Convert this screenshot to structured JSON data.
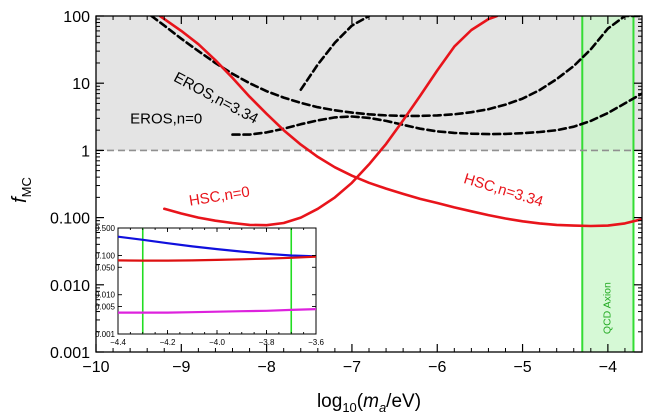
{
  "chart_data": [
    {
      "type": "line",
      "xlabel": "log10(ma/eV)",
      "ylabel": "fMC",
      "xlabel_parts": {
        "pre": "log",
        "sub": "10",
        "open": "(",
        "var": "m",
        "var_sub": "a",
        "post": "/eV)"
      },
      "ylabel_parts": {
        "var": "f",
        "sub": "MC"
      },
      "xlim": [
        -10,
        -3.6
      ],
      "ylim": [
        0.001,
        100
      ],
      "yscale": "log",
      "x_ticks": [
        -10,
        -9,
        -8,
        -7,
        -6,
        -5,
        -4
      ],
      "x_tick_labels": [
        "−10",
        "−9",
        "−8",
        "−7",
        "−6",
        "−5",
        "−4"
      ],
      "y_ticks": [
        0.001,
        0.01,
        0.1,
        1,
        10,
        100
      ],
      "y_tick_labels": [
        "0.001",
        "0.010",
        "0.100",
        "1",
        "10",
        "100"
      ],
      "excluded_region": {
        "ymin": 1,
        "ymax": 100,
        "color": "#e4e4e4"
      },
      "reference_line": {
        "y": 1,
        "color": "#909090",
        "style": "dashed"
      },
      "band": {
        "x": [
          -4.3,
          -3.7
        ],
        "label": "QCD Axion",
        "fill": "#c8f7c8",
        "edge": "#33dd33",
        "text_color": "#22aa22"
      },
      "series": [
        {
          "name": "EROS,n=3.34",
          "color": "#000000",
          "style": "dashed",
          "x": [
            -9.35,
            -9.2,
            -9.0,
            -8.8,
            -8.6,
            -8.4,
            -8.2,
            -8.0,
            -7.8,
            -7.6,
            -7.4,
            -7.2,
            -7.0,
            -6.8,
            -6.6,
            -6.4,
            -6.2,
            -6.0,
            -5.8,
            -5.6,
            -5.4,
            -5.2,
            -5.0,
            -4.8,
            -4.6,
            -4.4,
            -4.2,
            -4.0,
            -3.8,
            -3.6
          ],
          "y": [
            100,
            72,
            46,
            30,
            20,
            13.8,
            10,
            7.6,
            6.1,
            5.1,
            4.4,
            3.95,
            3.65,
            3.45,
            3.32,
            3.26,
            3.26,
            3.32,
            3.45,
            3.7,
            4.1,
            4.8,
            5.9,
            7.9,
            11.5,
            18,
            32,
            65,
            100,
            100
          ]
        },
        {
          "name": "EROS,n=0",
          "color": "#000000",
          "style": "dashed",
          "x": [
            -8.4,
            -8.2,
            -8.0,
            -7.8,
            -7.6,
            -7.4,
            -7.2,
            -7.0,
            -6.8,
            -6.6,
            -6.4,
            -6.2,
            -6.0,
            -5.8,
            -5.6,
            -5.4,
            -5.2,
            -5.0,
            -4.8,
            -4.6,
            -4.4,
            -4.2,
            -4.0,
            -3.8,
            -3.6
          ],
          "y": [
            1.72,
            1.72,
            1.85,
            2.1,
            2.45,
            2.8,
            3.1,
            3.2,
            3.05,
            2.75,
            2.4,
            2.1,
            1.92,
            1.82,
            1.77,
            1.75,
            1.76,
            1.8,
            1.88,
            2.0,
            2.25,
            2.75,
            3.6,
            5.0,
            7.0
          ]
        },
        {
          "name": "EROS,n=0 (upper branch)",
          "color": "#000000",
          "style": "dashed",
          "x": [
            -7.6,
            -7.4,
            -7.2,
            -7.0,
            -6.8
          ],
          "y": [
            8.0,
            19,
            40,
            72,
            100
          ]
        },
        {
          "name": "HSC,n=0",
          "color": "#e8141b",
          "style": "solid",
          "x": [
            -9.2,
            -9.0,
            -8.8,
            -8.6,
            -8.4,
            -8.2,
            -8.0,
            -7.8,
            -7.6,
            -7.4,
            -7.2,
            -7.0,
            -6.8,
            -6.6,
            -6.4,
            -6.2,
            -6.0,
            -5.8,
            -5.6,
            -5.4,
            -5.3
          ],
          "y": [
            0.135,
            0.115,
            0.1,
            0.09,
            0.083,
            0.078,
            0.077,
            0.083,
            0.1,
            0.135,
            0.2,
            0.33,
            0.62,
            1.25,
            2.8,
            6.5,
            15.5,
            35,
            62,
            90,
            100
          ]
        },
        {
          "name": "HSC,n=3.34",
          "color": "#e8141b",
          "style": "solid",
          "x": [
            -9.25,
            -9.0,
            -8.8,
            -8.6,
            -8.4,
            -8.2,
            -8.0,
            -7.8,
            -7.6,
            -7.4,
            -7.2,
            -7.0,
            -6.8,
            -6.6,
            -6.4,
            -6.2,
            -6.0,
            -5.8,
            -5.6,
            -5.4,
            -5.2,
            -5.0,
            -4.8,
            -4.6,
            -4.4,
            -4.2,
            -4.0,
            -3.8,
            -3.6
          ],
          "y": [
            100,
            60,
            38,
            22,
            12,
            6.3,
            3.5,
            2.0,
            1.22,
            0.8,
            0.56,
            0.42,
            0.33,
            0.27,
            0.225,
            0.19,
            0.165,
            0.142,
            0.124,
            0.109,
            0.097,
            0.088,
            0.082,
            0.078,
            0.076,
            0.075,
            0.076,
            0.082,
            0.095
          ]
        }
      ],
      "labels": [
        {
          "text": "EROS,n=3.34",
          "color": "#000000",
          "x": -9.1,
          "y": 11,
          "angle": 28
        },
        {
          "text": "EROS,n=0",
          "color": "#000000",
          "x": -9.6,
          "y": 2.5,
          "angle": 0
        },
        {
          "text": "HSC,n=0",
          "color": "#e8141b",
          "x": -8.9,
          "y": 0.15,
          "angle": -9
        },
        {
          "text": "HSC,n=3.34",
          "color": "#e8141b",
          "x": -5.7,
          "y": 0.33,
          "angle": 17
        }
      ]
    },
    {
      "type": "line",
      "title": "",
      "xlim": [
        -4.4,
        -3.6
      ],
      "ylim": [
        0.001,
        0.5
      ],
      "yscale": "log",
      "x_ticks": [
        -4.4,
        -4.2,
        -4.0,
        -3.8,
        -3.6
      ],
      "x_tick_labels": [
        "−4.4",
        "−4.2",
        "−4.0",
        "−3.8",
        "−3.6"
      ],
      "y_ticks": [
        0.001,
        0.005,
        0.01,
        0.05,
        0.1,
        0.5
      ],
      "y_tick_labels": [
        "0.001",
        "0.005",
        "0.010",
        "0.050",
        "0.100",
        "0.500"
      ],
      "vlines": [
        {
          "x": -4.3,
          "color": "#22dd22"
        },
        {
          "x": -3.7,
          "color": "#22dd22"
        }
      ],
      "series": [
        {
          "color": "#1010dd",
          "x": [
            -4.4,
            -4.3,
            -4.2,
            -4.1,
            -4.0,
            -3.9,
            -3.8,
            -3.7,
            -3.6
          ],
          "y": [
            0.3,
            0.25,
            0.205,
            0.17,
            0.145,
            0.125,
            0.11,
            0.1,
            0.095
          ]
        },
        {
          "color": "#dd1010",
          "x": [
            -4.4,
            -4.3,
            -4.2,
            -4.1,
            -4.0,
            -3.9,
            -3.8,
            -3.7,
            -3.6
          ],
          "y": [
            0.075,
            0.074,
            0.074,
            0.075,
            0.077,
            0.08,
            0.083,
            0.087,
            0.093
          ]
        },
        {
          "color": "#dd22dd",
          "x": [
            -4.4,
            -4.3,
            -4.2,
            -4.1,
            -4.0,
            -3.9,
            -3.8,
            -3.7,
            -3.6
          ],
          "y": [
            0.0035,
            0.0035,
            0.0035,
            0.0036,
            0.0037,
            0.0038,
            0.0039,
            0.0041,
            0.0043
          ]
        }
      ]
    }
  ]
}
